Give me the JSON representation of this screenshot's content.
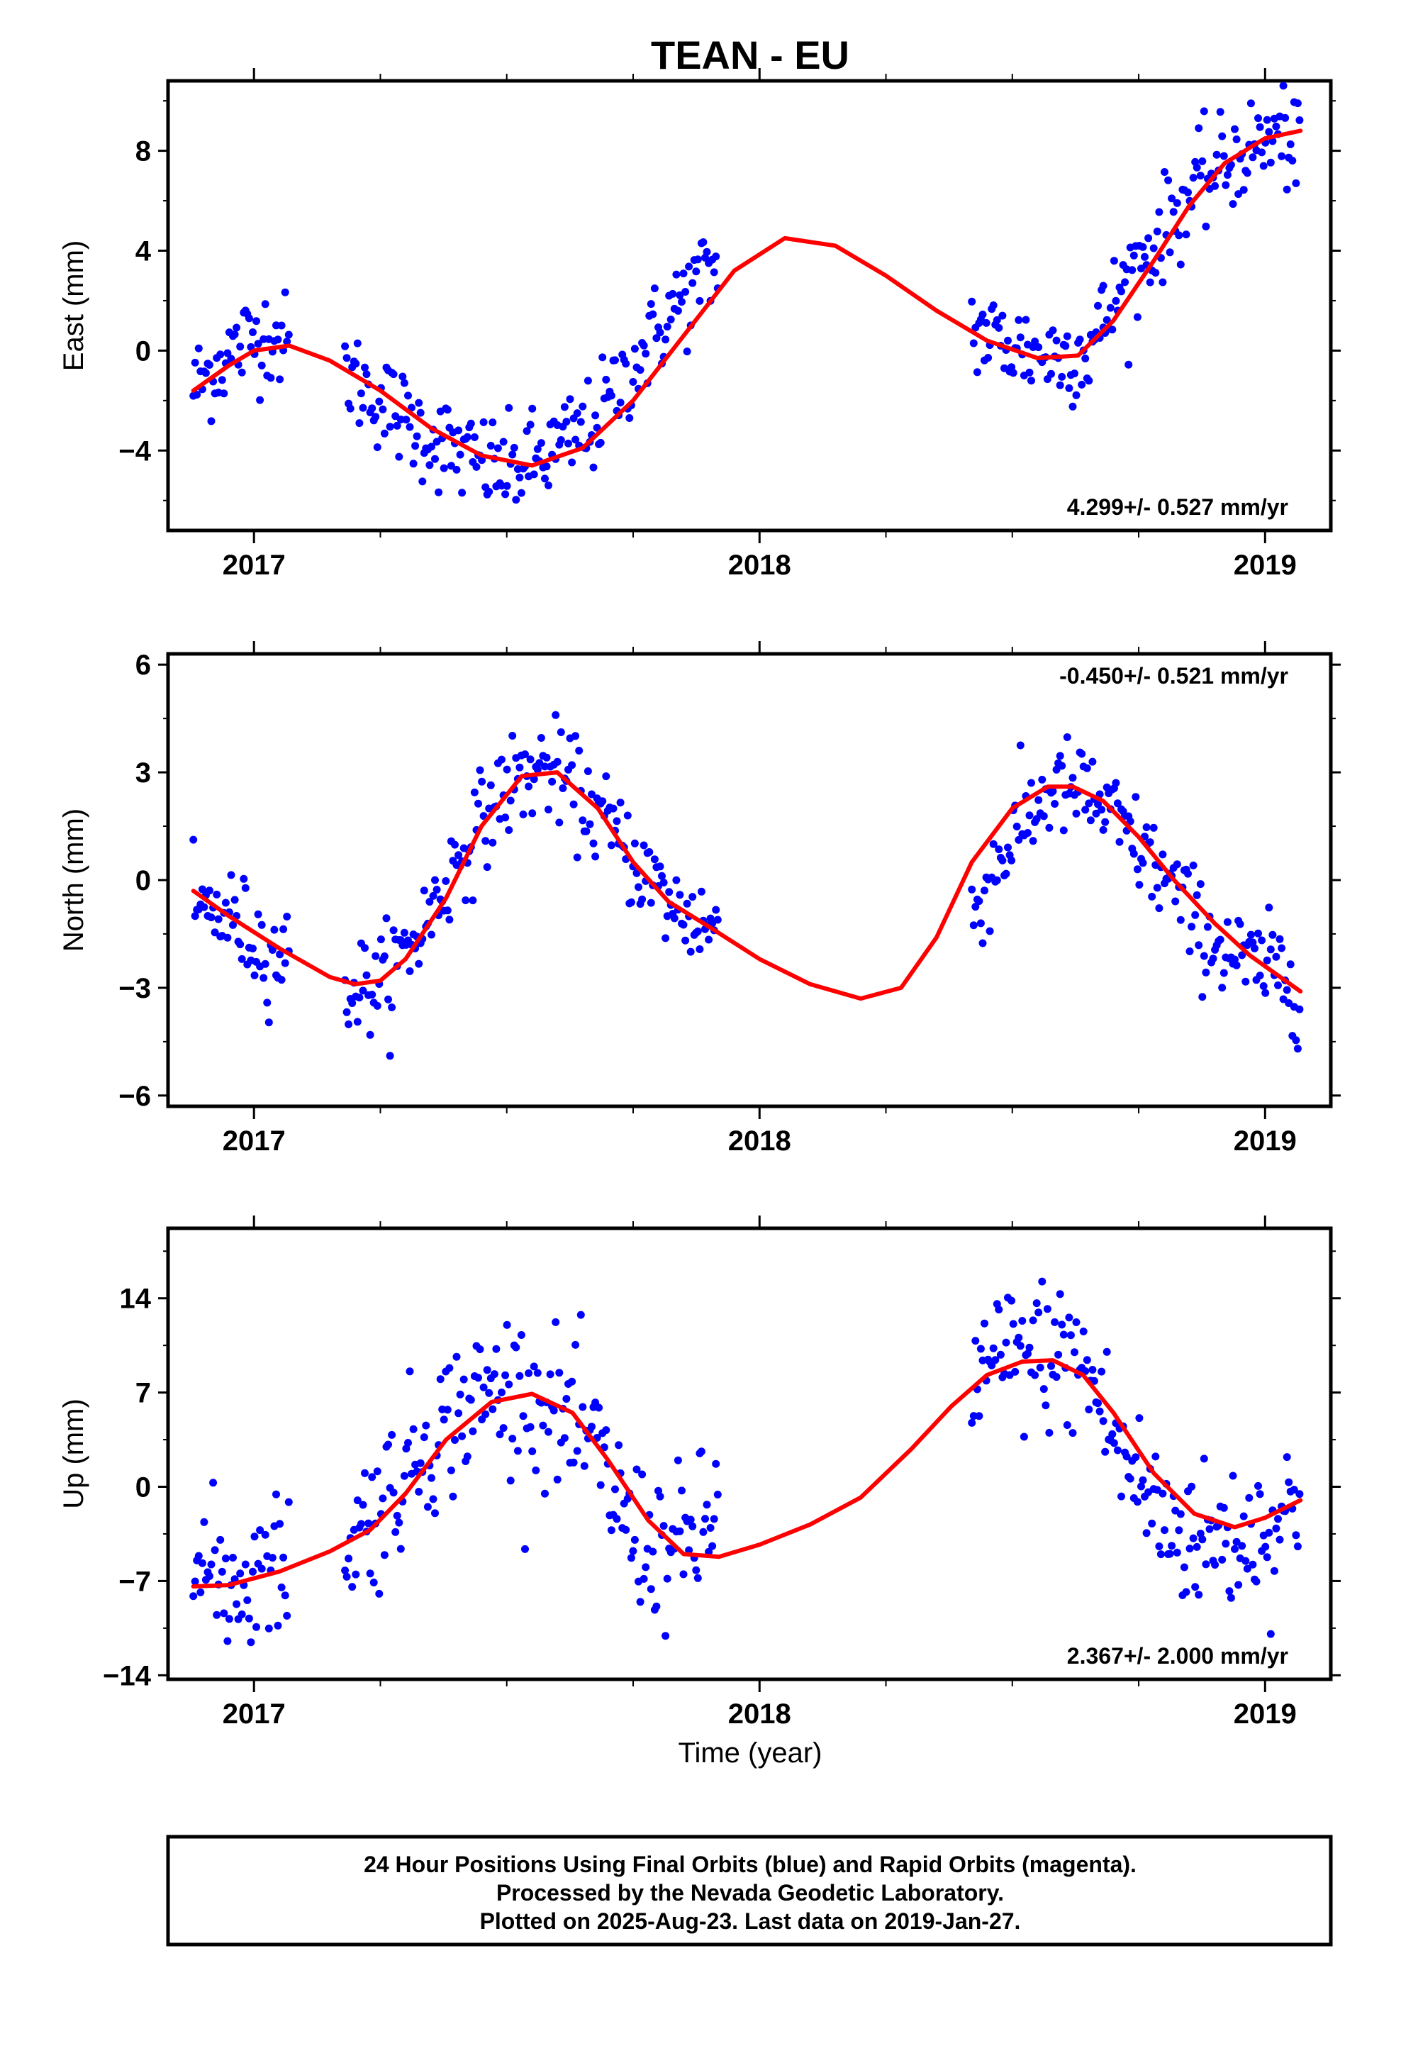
{
  "title": "TEAN - EU",
  "xlabel": "Time (year)",
  "caption": [
    "24 Hour Positions Using Final Orbits (blue) and Rapid Orbits (magenta).",
    "Processed by the Nevada Geodetic Laboratory.",
    "Plotted on 2025-Aug-23. Last data on 2019-Jan-27."
  ],
  "colors": {
    "points": "#0000ff",
    "model": "#ff0000",
    "frame": "#000000"
  },
  "chart_data": [
    {
      "type": "scatter",
      "title": "TEAN - EU",
      "ylabel": "East (mm)",
      "xlabel": "",
      "xlim": [
        2016.83,
        2019.13
      ],
      "ylim": [
        -7.2,
        10.8
      ],
      "xticks": [
        2017,
        2018,
        2019
      ],
      "yticks": [
        -4,
        0,
        4,
        8
      ],
      "rate_label": "4.299+/- 0.527 mm/yr",
      "rate_position": "bottom-right",
      "segments": [
        [
          2016.88,
          2017.07
        ],
        [
          2017.18,
          2017.92
        ],
        [
          2018.42,
          2018.68
        ],
        [
          2018.68,
          2019.07
        ]
      ],
      "series": [
        {
          "kind": "points",
          "x": [
            2016.88,
            2016.93,
            2016.98,
            2017.03,
            2017.07,
            2017.18,
            2017.25,
            2017.33,
            2017.42,
            2017.5,
            2017.58,
            2017.67,
            2017.75,
            2017.83,
            2017.92,
            2018.42,
            2018.5,
            2018.58,
            2018.65,
            2018.72,
            2018.8,
            2018.88,
            2018.97,
            2019.03,
            2019.07
          ],
          "y": [
            -1.5,
            -0.5,
            0.3,
            0.8,
            0.2,
            -0.8,
            -2.0,
            -3.2,
            -4.3,
            -4.8,
            -4.2,
            -3.0,
            -0.6,
            1.7,
            3.5,
            0.9,
            0.2,
            -0.2,
            0.0,
            2.6,
            4.9,
            6.9,
            8.1,
            8.6,
            8.2
          ]
        },
        {
          "kind": "line",
          "x": [
            2016.88,
            2016.95,
            2017.0,
            2017.07,
            2017.15,
            2017.25,
            2017.35,
            2017.45,
            2017.55,
            2017.65,
            2017.75,
            2017.85,
            2017.95,
            2018.05,
            2018.15,
            2018.25,
            2018.35,
            2018.45,
            2018.55,
            2018.63,
            2018.7,
            2018.78,
            2018.85,
            2018.92,
            2019.0,
            2019.07
          ],
          "y": [
            -1.6,
            -0.6,
            0.0,
            0.2,
            -0.4,
            -1.6,
            -3.1,
            -4.2,
            -4.6,
            -3.9,
            -2.0,
            0.6,
            3.2,
            4.5,
            4.2,
            3.0,
            1.6,
            0.4,
            -0.3,
            -0.2,
            1.2,
            3.6,
            5.8,
            7.5,
            8.5,
            8.8
          ]
        }
      ]
    },
    {
      "type": "scatter",
      "ylabel": "North (mm)",
      "xlabel": "",
      "xlim": [
        2016.83,
        2019.13
      ],
      "ylim": [
        -6.3,
        6.3
      ],
      "xticks": [
        2017,
        2018,
        2019
      ],
      "yticks": [
        -6,
        -3,
        0,
        3,
        6
      ],
      "rate_label": "-0.450+/- 0.521 mm/yr",
      "rate_position": "top-right",
      "segments": [
        [
          2016.88,
          2017.07
        ],
        [
          2017.18,
          2017.92
        ],
        [
          2018.42,
          2019.07
        ]
      ],
      "series": [
        {
          "kind": "points",
          "x": [
            2016.88,
            2016.95,
            2017.02,
            2017.07,
            2017.18,
            2017.25,
            2017.33,
            2017.42,
            2017.5,
            2017.58,
            2017.67,
            2017.75,
            2017.83,
            2017.92,
            2018.42,
            2018.5,
            2018.58,
            2018.65,
            2018.72,
            2018.8,
            2018.88,
            2018.97,
            2019.03,
            2019.07
          ],
          "y": [
            -0.8,
            -1.0,
            -1.9,
            -2.2,
            -3.0,
            -2.9,
            -1.4,
            1.0,
            2.6,
            3.2,
            2.0,
            0.6,
            -0.8,
            -1.4,
            -0.9,
            1.2,
            2.6,
            2.4,
            1.4,
            0.1,
            -1.5,
            -2.4,
            -2.5,
            -3.0
          ]
        },
        {
          "kind": "line",
          "x": [
            2016.88,
            2016.95,
            2017.05,
            2017.15,
            2017.2,
            2017.25,
            2017.3,
            2017.38,
            2017.45,
            2017.53,
            2017.6,
            2017.68,
            2017.75,
            2017.82,
            2017.9,
            2018.0,
            2018.1,
            2018.2,
            2018.28,
            2018.35,
            2018.42,
            2018.5,
            2018.57,
            2018.62,
            2018.68,
            2018.75,
            2018.82,
            2018.9,
            2018.97,
            2019.07
          ],
          "y": [
            -0.3,
            -1.0,
            -1.9,
            -2.7,
            -2.9,
            -2.8,
            -2.2,
            -0.5,
            1.5,
            2.9,
            3.0,
            2.0,
            0.5,
            -0.6,
            -1.3,
            -2.2,
            -2.9,
            -3.3,
            -3.0,
            -1.6,
            0.5,
            2.0,
            2.6,
            2.6,
            2.2,
            1.2,
            0.0,
            -1.2,
            -2.1,
            -3.1
          ]
        }
      ]
    },
    {
      "type": "scatter",
      "ylabel": "Up (mm)",
      "xlabel": "Time (year)",
      "xlim": [
        2016.83,
        2019.13
      ],
      "ylim": [
        -14.3,
        19.2
      ],
      "xticks": [
        2017,
        2018,
        2019
      ],
      "yticks": [
        -14,
        -7,
        0,
        7,
        14
      ],
      "rate_label": "2.367+/- 2.000 mm/yr",
      "rate_position": "bottom-right",
      "segments": [
        [
          2016.88,
          2017.07
        ],
        [
          2017.18,
          2017.92
        ],
        [
          2018.42,
          2019.07
        ]
      ],
      "series": [
        {
          "kind": "points",
          "x": [
            2016.88,
            2016.95,
            2017.02,
            2017.07,
            2017.18,
            2017.25,
            2017.33,
            2017.42,
            2017.5,
            2017.58,
            2017.67,
            2017.75,
            2017.83,
            2017.92,
            2018.42,
            2018.5,
            2018.58,
            2018.65,
            2018.72,
            2018.8,
            2018.88,
            2018.97,
            2019.03,
            2019.07
          ],
          "y": [
            -6.0,
            -7.0,
            -6.5,
            -5.5,
            -4.0,
            -1.5,
            3.0,
            6.0,
            7.5,
            6.0,
            3.0,
            -3.5,
            -5.0,
            -2.0,
            8.0,
            9.5,
            10.0,
            8.5,
            2.0,
            -2.5,
            -4.0,
            -3.5,
            -2.5,
            -1.0
          ]
        },
        {
          "kind": "line",
          "x": [
            2016.88,
            2016.95,
            2017.05,
            2017.15,
            2017.23,
            2017.3,
            2017.38,
            2017.47,
            2017.55,
            2017.63,
            2017.7,
            2017.78,
            2017.85,
            2017.92,
            2018.0,
            2018.1,
            2018.2,
            2018.3,
            2018.38,
            2018.45,
            2018.52,
            2018.58,
            2018.64,
            2018.7,
            2018.78,
            2018.86,
            2018.94,
            2019.0,
            2019.07
          ],
          "y": [
            -7.4,
            -7.3,
            -6.3,
            -4.8,
            -3.2,
            -0.5,
            3.5,
            6.3,
            6.9,
            5.5,
            2.0,
            -2.5,
            -5.0,
            -5.2,
            -4.3,
            -2.8,
            -0.8,
            2.8,
            6.0,
            8.3,
            9.3,
            9.4,
            8.3,
            5.5,
            1.0,
            -2.0,
            -3.0,
            -2.3,
            -1.0
          ]
        }
      ]
    }
  ]
}
